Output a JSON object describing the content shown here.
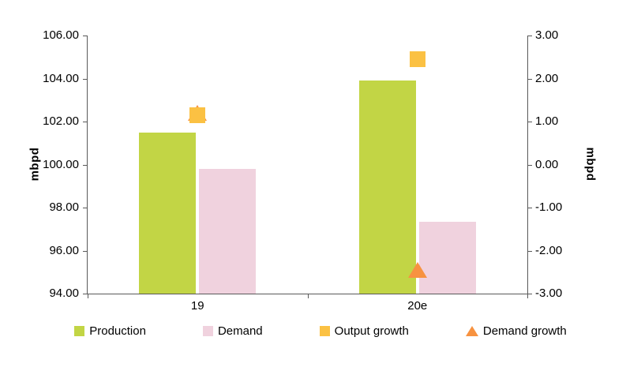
{
  "chart_data": {
    "type": "bar",
    "subtype": "combo-bar-with-markers",
    "categories": [
      "19",
      "20e"
    ],
    "bar_series": [
      {
        "name": "Production",
        "color": "#c2d545",
        "values": [
          101.5,
          103.9
        ]
      },
      {
        "name": "Demand",
        "color": "#f0d2de",
        "values": [
          99.8,
          97.35
        ]
      }
    ],
    "marker_series": [
      {
        "name": "Output growth",
        "shape": "square",
        "color": "#fbc143",
        "values": [
          1.15,
          2.45
        ]
      },
      {
        "name": "Demand growth",
        "shape": "triangle",
        "color": "#f79240",
        "values": [
          1.2,
          -2.45
        ]
      }
    ],
    "left_axis": {
      "label": "mbpd",
      "min": 94,
      "max": 106,
      "step": 2,
      "decimals": 2
    },
    "right_axis": {
      "label": "mbpd",
      "min": -3,
      "max": 3,
      "step": 1,
      "decimals": 2
    },
    "legend": [
      "Production",
      "Demand",
      "Output growth",
      "Demand growth"
    ],
    "title": "",
    "grid": false,
    "legend_position": "bottom"
  }
}
